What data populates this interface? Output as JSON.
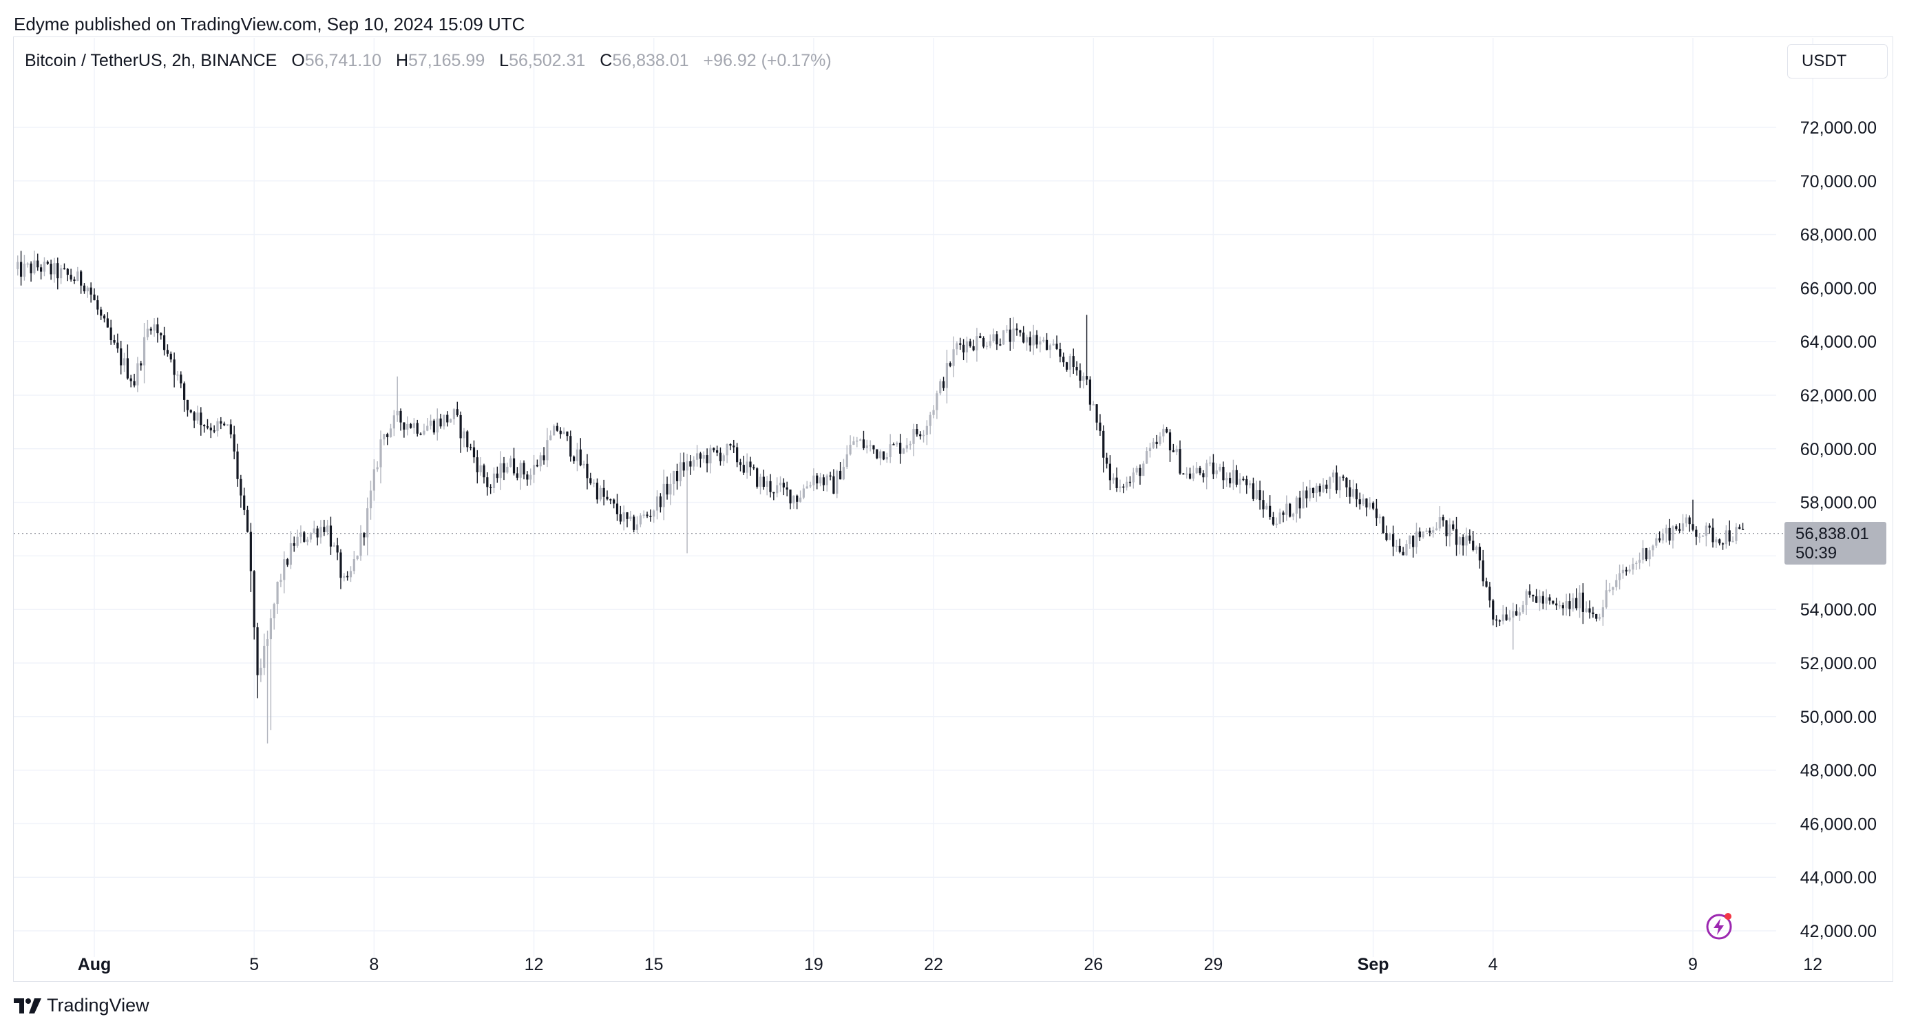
{
  "header": {
    "published": "Edyme published on TradingView.com, Sep 10, 2024 15:09 UTC"
  },
  "legend": {
    "symbol": "Bitcoin / TetherUS, 2h, BINANCE",
    "open_label": "O",
    "open": "56,741.10",
    "high_label": "H",
    "high": "57,165.99",
    "low_label": "L",
    "low": "56,502.31",
    "close_label": "C",
    "close": "56,838.01",
    "change": "+96.92 (+0.17%)"
  },
  "currency_button": "USDT",
  "price_tag": {
    "price": "56,838.01",
    "countdown": "50:39"
  },
  "footer": {
    "brand": "TradingView"
  },
  "icons": {
    "alert": "lightning-icon",
    "logo": "tradingview-logo-icon"
  },
  "colors": {
    "candle_up": "#b2b5be",
    "candle_down": "#131722",
    "grid": "#f0f3fa",
    "alert_accent": "#9c27b0",
    "alert_dot": "#f23645"
  },
  "chart_data": {
    "type": "candlestick",
    "symbol": "BTCUSDT",
    "interval": "2h",
    "ylim": [
      41500,
      74500
    ],
    "y_ticks": [
      42000,
      44000,
      46000,
      48000,
      50000,
      52000,
      54000,
      56000,
      58000,
      60000,
      62000,
      64000,
      66000,
      68000,
      70000,
      72000
    ],
    "y_tick_labels": [
      "42,000.00",
      "44,000.00",
      "46,000.00",
      "48,000.00",
      "50,000.00",
      "52,000.00",
      "54,000.00",
      "56,000.00",
      "58,000.00",
      "60,000.00",
      "62,000.00",
      "64,000.00",
      "66,000.00",
      "68,000.00",
      "70,000.00",
      "72,000.00"
    ],
    "x_ticks": [
      {
        "day": 1,
        "label": "Aug",
        "bold": true
      },
      {
        "day": 5,
        "label": "5"
      },
      {
        "day": 8,
        "label": "8"
      },
      {
        "day": 12,
        "label": "12"
      },
      {
        "day": 15,
        "label": "15"
      },
      {
        "day": 19,
        "label": "19"
      },
      {
        "day": 22,
        "label": "22"
      },
      {
        "day": 26,
        "label": "26"
      },
      {
        "day": 29,
        "label": "29"
      },
      {
        "day": 33,
        "label": "Sep",
        "bold": true
      },
      {
        "day": 36,
        "label": "4"
      },
      {
        "day": 41,
        "label": "9"
      },
      {
        "day": 44,
        "label": "12"
      }
    ],
    "x_day_range": [
      -1,
      44
    ],
    "current_price": 56838.01,
    "path_days": [
      -1,
      -0.4,
      0.8,
      1.4,
      2.0,
      2.4,
      2.9,
      3.3,
      3.8,
      4.4,
      4.9,
      5.05,
      5.3,
      5.6,
      6.0,
      6.8,
      7.3,
      7.8,
      8.2,
      8.6,
      9.2,
      10.0,
      10.9,
      11.3,
      11.9,
      12.6,
      13.6,
      14.4,
      14.9,
      15.7,
      16.3,
      16.9,
      17.7,
      18.6,
      19.0,
      19.5,
      20.0,
      20.6,
      21.2,
      21.8,
      22.6,
      23.0,
      23.6,
      24.5,
      25.0,
      25.8,
      26.4,
      26.9,
      27.8,
      28.3,
      29.0,
      29.7,
      30.3,
      30.6,
      31.3,
      32.0,
      32.8,
      33.4,
      33.8,
      34.6,
      35.2,
      35.6,
      36.0,
      36.4,
      36.7,
      37.0,
      37.6,
      38.2,
      38.6,
      38.9,
      39.4,
      40.0,
      40.7,
      41.2,
      41.4,
      41.6,
      41.9,
      42.3
    ],
    "path_close": [
      66600,
      66800,
      66200,
      64000,
      62500,
      64800,
      63500,
      61600,
      60900,
      60700,
      56000,
      51500,
      52500,
      55000,
      56500,
      57200,
      54700,
      57300,
      60500,
      61100,
      60800,
      61200,
      58500,
      59500,
      59000,
      60800,
      58400,
      57100,
      57600,
      59300,
      59700,
      59900,
      58700,
      58200,
      59000,
      58600,
      60300,
      59900,
      60100,
      60900,
      63900,
      64000,
      64200,
      64100,
      63600,
      62700,
      58900,
      58700,
      60600,
      59000,
      59200,
      58900,
      57800,
      57300,
      58300,
      58900,
      57900,
      56800,
      56300,
      57300,
      56500,
      56300,
      53700,
      53900,
      54200,
      54500,
      54000,
      54300,
      53800,
      54700,
      55500,
      56500,
      57200,
      56900,
      56800,
      56700,
      56800,
      56838
    ],
    "spikes": [
      {
        "day": 5.3,
        "low": 49000
      },
      {
        "day": 5.4,
        "low": 49500
      },
      {
        "day": 8.55,
        "high": 62700
      },
      {
        "day": 15.8,
        "low": 56100
      },
      {
        "day": 25.8,
        "high": 65000
      },
      {
        "day": 36.5,
        "low": 52500
      },
      {
        "day": 41.0,
        "high": 58100
      }
    ]
  }
}
